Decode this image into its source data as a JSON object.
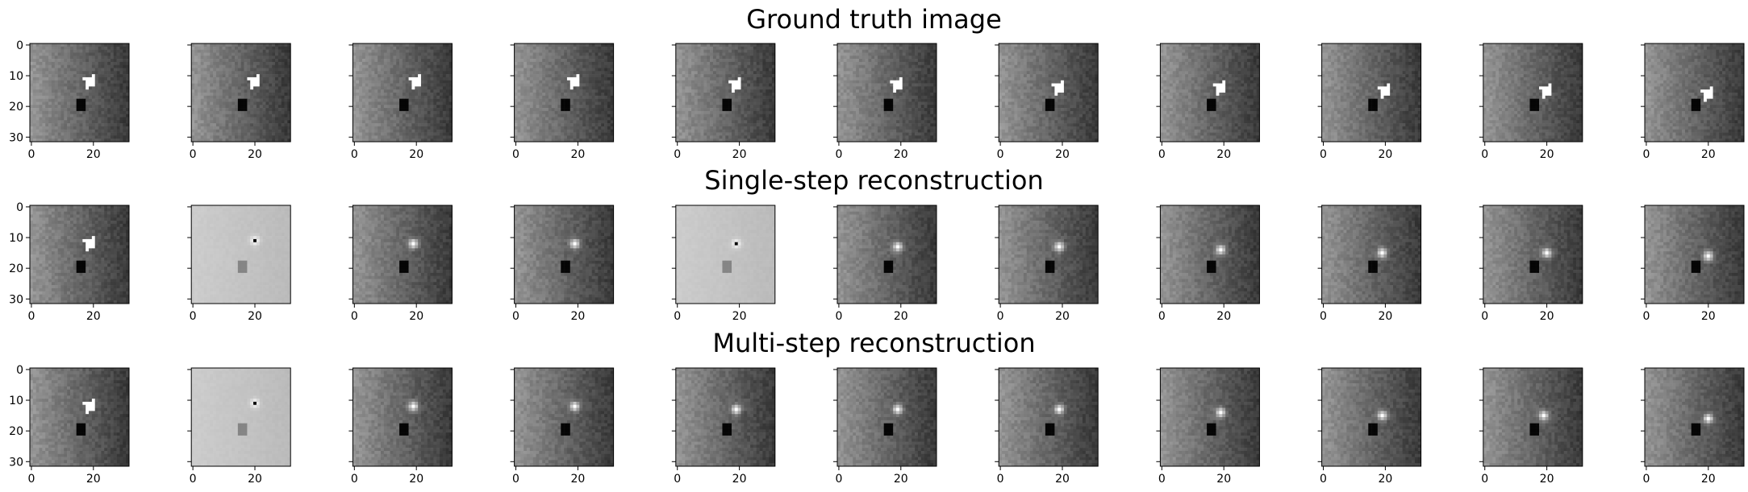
{
  "rows": [
    {
      "title": "Ground truth image"
    },
    {
      "title": "Single-step reconstruction"
    },
    {
      "title": "Multi-step reconstruction"
    }
  ],
  "chart_data": {
    "type": "heatmap",
    "colormap": "gray",
    "image_size": [
      32,
      32
    ],
    "columns": 11,
    "row_titles": [
      "Ground truth image",
      "Single-step reconstruction",
      "Multi-step reconstruction"
    ],
    "x_ticks": [
      0,
      20
    ],
    "y_ticks": [
      0,
      10,
      20,
      30
    ],
    "y_tick_labels_shown": "first column only",
    "xlim": [
      0,
      31
    ],
    "ylim": [
      31,
      0
    ],
    "dark_block": {
      "x": [
        15,
        17
      ],
      "y": [
        18,
        21
      ]
    },
    "panels": [
      [
        {
          "blob": [
            19,
            12
          ],
          "style": "sharp",
          "bright": 0.0
        },
        {
          "blob": [
            20,
            12
          ],
          "style": "sharp",
          "bright": 0.0
        },
        {
          "blob": [
            20,
            12
          ],
          "style": "sharp",
          "bright": 0.0
        },
        {
          "blob": [
            19,
            12
          ],
          "style": "sharp",
          "bright": 0.0
        },
        {
          "blob": [
            19,
            13
          ],
          "style": "sharp",
          "bright": 0.0
        },
        {
          "blob": [
            19,
            13
          ],
          "style": "sharp",
          "bright": 0.0
        },
        {
          "blob": [
            19,
            14
          ],
          "style": "sharp",
          "bright": 0.0
        },
        {
          "blob": [
            19,
            14
          ],
          "style": "sharp",
          "bright": 0.0
        },
        {
          "blob": [
            20,
            15
          ],
          "style": "sharp",
          "bright": 0.0
        },
        {
          "blob": [
            20,
            15
          ],
          "style": "sharp",
          "bright": 0.0
        },
        {
          "blob": [
            20,
            16
          ],
          "style": "sharp",
          "bright": 0.0
        }
      ],
      [
        {
          "blob": [
            19,
            12
          ],
          "style": "sharp",
          "bright": 0.0
        },
        {
          "blob": [
            20,
            11
          ],
          "style": "dot",
          "bright": 1.0
        },
        {
          "blob": [
            19,
            12
          ],
          "style": "blur",
          "bright": 0.0
        },
        {
          "blob": [
            19,
            12
          ],
          "style": "blur",
          "bright": 0.0
        },
        {
          "blob": [
            19,
            12
          ],
          "style": "dot",
          "bright": 1.0
        },
        {
          "blob": [
            19,
            13
          ],
          "style": "blur",
          "bright": 0.0
        },
        {
          "blob": [
            19,
            13
          ],
          "style": "blur",
          "bright": 0.0
        },
        {
          "blob": [
            19,
            14
          ],
          "style": "blur",
          "bright": 0.0
        },
        {
          "blob": [
            19,
            15
          ],
          "style": "blur",
          "bright": 0.0
        },
        {
          "blob": [
            20,
            15
          ],
          "style": "blur",
          "bright": 0.0
        },
        {
          "blob": [
            20,
            16
          ],
          "style": "blur",
          "bright": 0.0
        }
      ],
      [
        {
          "blob": [
            19,
            12
          ],
          "style": "sharp",
          "bright": 0.0
        },
        {
          "blob": [
            20,
            11
          ],
          "style": "dot",
          "bright": 1.0
        },
        {
          "blob": [
            19,
            12
          ],
          "style": "blur",
          "bright": 0.0
        },
        {
          "blob": [
            19,
            12
          ],
          "style": "blur",
          "bright": 0.0
        },
        {
          "blob": [
            19,
            13
          ],
          "style": "blur",
          "bright": 0.0
        },
        {
          "blob": [
            19,
            13
          ],
          "style": "blur",
          "bright": 0.0
        },
        {
          "blob": [
            19,
            13
          ],
          "style": "blur",
          "bright": 0.0
        },
        {
          "blob": [
            19,
            14
          ],
          "style": "blur",
          "bright": 0.0
        },
        {
          "blob": [
            19,
            15
          ],
          "style": "blur",
          "bright": 0.0
        },
        {
          "blob": [
            19,
            15
          ],
          "style": "blur",
          "bright": 0.0
        },
        {
          "blob": [
            20,
            16
          ],
          "style": "blur",
          "bright": 0.0
        }
      ]
    ]
  }
}
